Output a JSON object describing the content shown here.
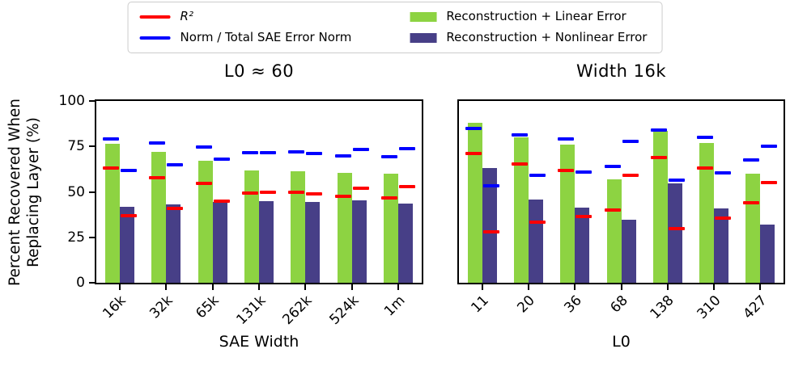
{
  "legend": {
    "items": [
      {
        "label": "R²",
        "type": "line",
        "color": "#ff0000",
        "italic": true
      },
      {
        "label": "Norm / Total SAE Error Norm",
        "type": "line",
        "color": "#0000ff",
        "italic": false
      },
      {
        "label": "Reconstruction + Linear Error",
        "type": "patch",
        "color": "#8dd342",
        "italic": false
      },
      {
        "label": "Reconstruction + Nonlinear Error",
        "type": "patch",
        "color": "#473f87",
        "italic": false
      }
    ]
  },
  "figure": {
    "ylabel_line1": "Percent Recovered When",
    "ylabel_line2": "Replacing Layer (%)"
  },
  "colors": {
    "linear_bar": "#8dd342",
    "nonlinear_bar": "#473f87",
    "r2_marker": "#ff0000",
    "norm_marker": "#0000ff"
  },
  "chart_data": [
    {
      "type": "bar",
      "title": "L0 ≈ 60",
      "xlabel": "SAE Width",
      "ylabel": "Percent Recovered When Replacing Layer (%)",
      "ylim": [
        0,
        100
      ],
      "yticks": [
        0,
        25,
        50,
        75,
        100
      ],
      "grid": false,
      "legend_position": "top-center-above-figure",
      "categories": [
        "16k",
        "32k",
        "65k",
        "131k",
        "262k",
        "524k",
        "1m"
      ],
      "series": [
        {
          "name": "Reconstruction + Linear Error",
          "style": "bar",
          "slot": 0,
          "color": "#8dd342",
          "values": [
            76.5,
            72,
            67,
            62,
            61.5,
            60.5,
            60
          ]
        },
        {
          "name": "Reconstruction + Nonlinear Error",
          "style": "bar",
          "slot": 1,
          "color": "#473f87",
          "values": [
            42,
            43,
            44.5,
            45,
            44.5,
            45.5,
            43.5
          ]
        },
        {
          "name": "R² (linear error replacement)",
          "style": "dash",
          "slot": 0,
          "color": "#ff0000",
          "values": [
            63,
            58,
            54.5,
            49.5,
            50,
            47.5,
            46.5
          ]
        },
        {
          "name": "R² (nonlinear error replacement)",
          "style": "dash",
          "slot": 1,
          "color": "#ff0000",
          "values": [
            37,
            41,
            45,
            50,
            49,
            52,
            53
          ]
        },
        {
          "name": "Norm / Total SAE Error Norm (linear)",
          "style": "dash",
          "slot": 0,
          "color": "#0000ff",
          "values": [
            79,
            77,
            74.5,
            71.5,
            72,
            70,
            69.5
          ]
        },
        {
          "name": "Norm / Total SAE Error Norm (nonlinear)",
          "style": "dash",
          "slot": 1,
          "color": "#0000ff",
          "values": [
            62,
            65,
            68,
            71.5,
            71,
            73.5,
            74
          ]
        }
      ]
    },
    {
      "type": "bar",
      "title": "Width 16k",
      "xlabel": "L0",
      "ylabel": "Percent Recovered When Replacing Layer (%)",
      "ylim": [
        0,
        100
      ],
      "yticks": [
        0,
        25,
        50,
        75,
        100
      ],
      "grid": false,
      "legend_position": "top-center-above-figure",
      "categories": [
        "11",
        "20",
        "36",
        "68",
        "138",
        "310",
        "427"
      ],
      "series": [
        {
          "name": "Reconstruction + Linear Error",
          "style": "bar",
          "slot": 0,
          "color": "#8dd342",
          "values": [
            88,
            80,
            76,
            57,
            83.5,
            77,
            60
          ]
        },
        {
          "name": "Reconstruction + Nonlinear Error",
          "style": "bar",
          "slot": 1,
          "color": "#473f87",
          "values": [
            63,
            46,
            41.5,
            34.5,
            54.5,
            41,
            32
          ]
        },
        {
          "name": "R² (linear error replacement)",
          "style": "dash",
          "slot": 0,
          "color": "#ff0000",
          "values": [
            71,
            65.5,
            62,
            40,
            69,
            63,
            44
          ]
        },
        {
          "name": "R² (nonlinear error replacement)",
          "style": "dash",
          "slot": 1,
          "color": "#ff0000",
          "values": [
            28,
            33.5,
            36.5,
            59,
            30,
            35.5,
            55
          ]
        },
        {
          "name": "Norm / Total SAE Error Norm (linear)",
          "style": "dash",
          "slot": 0,
          "color": "#0000ff",
          "values": [
            85,
            81.5,
            79,
            64,
            84,
            80,
            67.5
          ]
        },
        {
          "name": "Norm / Total SAE Error Norm (nonlinear)",
          "style": "dash",
          "slot": 1,
          "color": "#0000ff",
          "values": [
            53.5,
            59,
            61,
            78,
            56.5,
            60.5,
            75
          ]
        }
      ]
    }
  ]
}
